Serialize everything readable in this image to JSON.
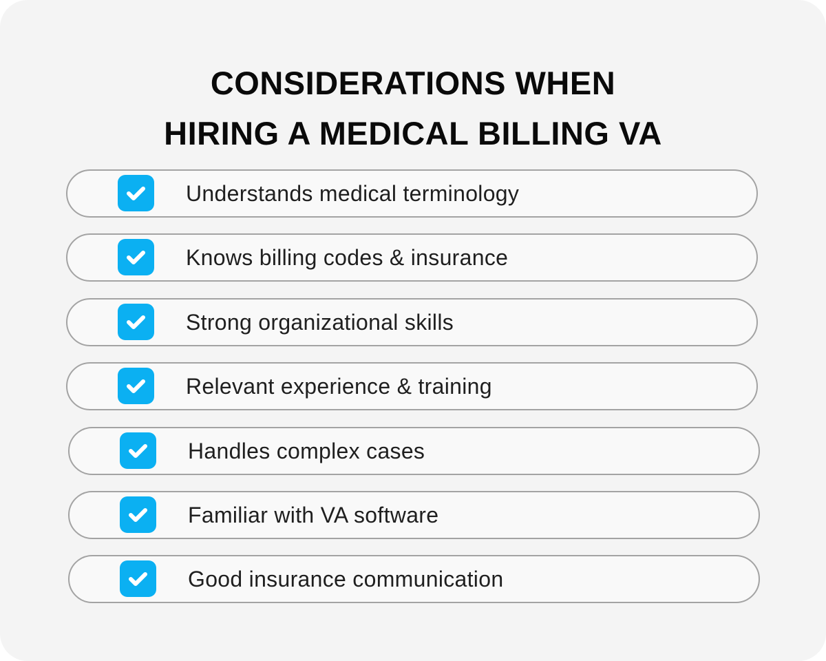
{
  "title": {
    "line1": "CONSIDERATIONS WHEN",
    "line2": "HIRING A MEDICAL BILLING VA"
  },
  "accent_color": "#0bb0f2",
  "items": [
    {
      "label": "Understands medical terminology",
      "icon": "checkbox-checked-icon",
      "checked": true
    },
    {
      "label": "Knows billing codes & insurance",
      "icon": "checkbox-checked-icon",
      "checked": true
    },
    {
      "label": "Strong organizational skills",
      "icon": "checkbox-checked-icon",
      "checked": true
    },
    {
      "label": "Relevant experience & training",
      "icon": "checkbox-checked-icon",
      "checked": true
    },
    {
      "label": "Handles complex cases",
      "icon": "checkbox-checked-icon",
      "checked": true
    },
    {
      "label": "Familiar with VA software",
      "icon": "checkbox-checked-icon",
      "checked": true
    },
    {
      "label": "Good insurance communication",
      "icon": "checkbox-checked-icon",
      "checked": true
    }
  ]
}
